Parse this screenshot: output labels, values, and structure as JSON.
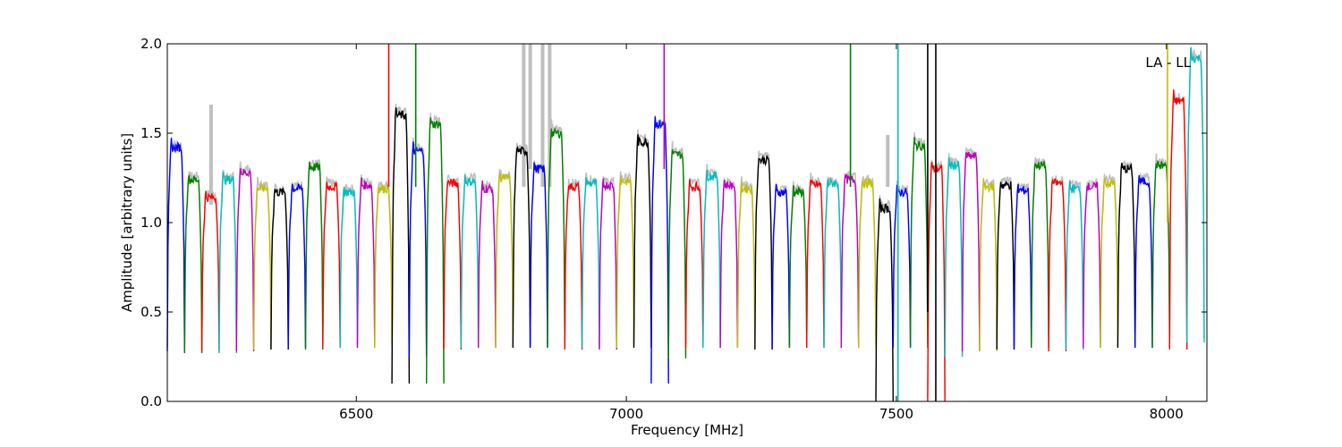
{
  "chart_data": {
    "type": "line",
    "title": "",
    "xlabel": "Frequency [MHz]",
    "ylabel": "Amplitude [arbitrary units]",
    "xlim": [
      6150,
      8075
    ],
    "ylim": [
      0.0,
      2.0
    ],
    "x_ticks": [
      6500,
      7000,
      7500,
      8000
    ],
    "x_tick_labels": [
      "6500",
      "7000",
      "7500",
      "8000"
    ],
    "y_ticks": [
      0.0,
      0.5,
      1.0,
      1.5,
      2.0
    ],
    "y_tick_labels": [
      "0.0",
      "0.5",
      "1.0",
      "1.5",
      "2.0"
    ],
    "grid": false,
    "annotation": "LA - LL",
    "annotation_position": "top-right",
    "band_width_mhz": 32,
    "channel_band_start_mhz": [
      6150,
      6182,
      6214,
      6246,
      6278,
      6310,
      6342,
      6374,
      6406,
      6438,
      6470,
      6502,
      6534,
      6566,
      6598,
      6630,
      6662,
      6694,
      6726,
      6758,
      6790,
      6822,
      6854,
      6886,
      6918,
      6950,
      6982,
      7014,
      7046,
      7078,
      7110,
      7142,
      7174,
      7206,
      7238,
      7270,
      7302,
      7334,
      7366,
      7398,
      7430,
      7462,
      7494,
      7526,
      7558,
      7590,
      7622,
      7654,
      7686,
      7718,
      7750,
      7782,
      7814,
      7846,
      7878,
      7910,
      7942,
      7974,
      8006,
      8038
    ],
    "channel_plateau_amplitude": [
      1.42,
      1.24,
      1.14,
      1.24,
      1.28,
      1.19,
      1.17,
      1.19,
      1.31,
      1.2,
      1.17,
      1.21,
      1.19,
      1.6,
      1.4,
      1.55,
      1.22,
      1.23,
      1.19,
      1.25,
      1.4,
      1.3,
      1.5,
      1.2,
      1.22,
      1.21,
      1.23,
      1.45,
      1.55,
      1.38,
      1.2,
      1.26,
      1.21,
      1.19,
      1.35,
      1.17,
      1.17,
      1.21,
      1.22,
      1.24,
      1.22,
      1.08,
      1.17,
      1.43,
      1.3,
      1.32,
      1.37,
      1.2,
      1.21,
      1.18,
      1.32,
      1.22,
      1.19,
      1.2,
      1.22,
      1.3,
      1.23,
      1.32,
      1.68,
      1.92
    ],
    "channel_min_amplitude": [
      0.28,
      0.27,
      0.28,
      0.27,
      0.28,
      0.29,
      0.29,
      0.3,
      0.29,
      0.3,
      0.3,
      0.3,
      0.3,
      0.1,
      0.25,
      0.1,
      0.29,
      0.3,
      0.3,
      0.3,
      0.3,
      0.3,
      0.3,
      0.29,
      0.3,
      0.29,
      0.3,
      0.3,
      0.1,
      0.24,
      0.3,
      0.3,
      0.3,
      0.3,
      0.29,
      0.3,
      0.3,
      0.3,
      0.3,
      0.3,
      0.3,
      0.0,
      0.3,
      0.3,
      0.0,
      0.25,
      0.28,
      0.28,
      0.29,
      0.3,
      0.3,
      0.28,
      0.29,
      0.3,
      0.3,
      0.3,
      0.3,
      0.3,
      0.29,
      0.33
    ],
    "series_colors": [
      "#0000ff",
      "#008000",
      "#ff0000",
      "#00bfbf",
      "#bf00bf",
      "#bfbf00",
      "#000000"
    ],
    "background_series_color": "#bfbfbf",
    "spikes": [
      {
        "x": 6560,
        "y_from": 1.2,
        "y_to": 2.0,
        "color": "#ff0000"
      },
      {
        "x": 6610,
        "y_from": 1.2,
        "y_to": 2.0,
        "color": "#008000"
      },
      {
        "x": 7070,
        "y_from": 1.3,
        "y_to": 2.0,
        "color": "#bf00bf"
      },
      {
        "x": 7415,
        "y_from": 1.2,
        "y_to": 2.0,
        "color": "#008000"
      },
      {
        "x": 7503,
        "y_from": 0.0,
        "y_to": 2.0,
        "color": "#00bfbf"
      },
      {
        "x": 7558,
        "y_from": 0.5,
        "y_to": 2.0,
        "color": "#000000"
      },
      {
        "x": 7573,
        "y_from": 0.0,
        "y_to": 2.0,
        "color": "#000000"
      },
      {
        "x": 8002,
        "y_from": 1.0,
        "y_to": 2.0,
        "color": "#bfbf00"
      }
    ],
    "background_spikes": [
      {
        "x": 6231,
        "y_from": 1.1,
        "y_to": 1.66
      },
      {
        "x": 6810,
        "y_from": 1.2,
        "y_to": 2.0
      },
      {
        "x": 6822,
        "y_from": 1.3,
        "y_to": 2.0
      },
      {
        "x": 6845,
        "y_from": 1.2,
        "y_to": 2.0
      },
      {
        "x": 6858,
        "y_from": 1.2,
        "y_to": 2.0
      },
      {
        "x": 7484,
        "y_from": 1.2,
        "y_to": 1.49
      }
    ]
  }
}
